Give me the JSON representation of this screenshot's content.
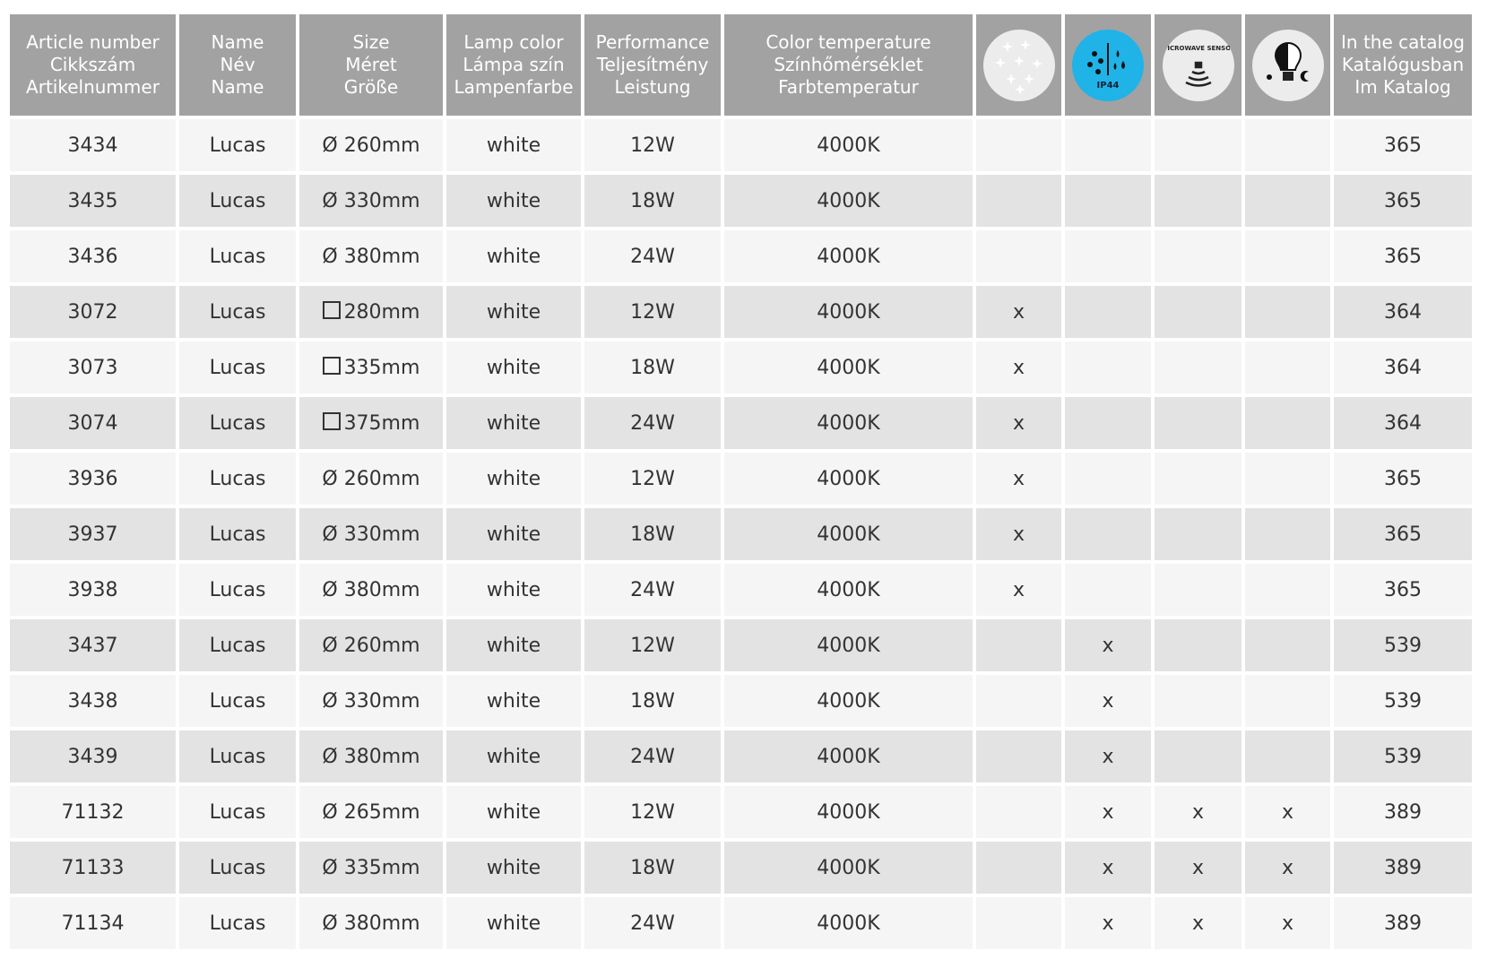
{
  "headers": [
    {
      "lines": [
        "Article number",
        "Cikkszám",
        "Artikelnummer"
      ]
    },
    {
      "lines": [
        "Name",
        "Név",
        "Name"
      ]
    },
    {
      "lines": [
        "Size",
        "Méret",
        "Größe"
      ]
    },
    {
      "lines": [
        "Lamp color",
        "Lámpa szín",
        "Lampenfarbe"
      ]
    },
    {
      "lines": [
        "Performance",
        "Teljesítmény",
        "Leistung"
      ]
    },
    {
      "lines": [
        "Color temperature",
        "Színhőmérséklet",
        "Farbtemperatur"
      ]
    },
    {
      "icon": "starry-sky-icon"
    },
    {
      "icon": "ip44-icon",
      "text": "IP44",
      "color": "#1fb3e8"
    },
    {
      "icon": "microwave-sensor-icon",
      "text": "MICROWAVE SENSOR"
    },
    {
      "icon": "day-night-bulb-icon"
    },
    {
      "lines": [
        "In the catalog",
        "Katalógusban",
        "Im Katalog"
      ]
    }
  ],
  "rows": [
    {
      "article": "3434",
      "name": "Lucas",
      "shape": "round",
      "size": "Ø 260mm",
      "color": "white",
      "power": "12W",
      "temp": "4000K",
      "star": "",
      "ip44": "",
      "sensor": "",
      "daynight": "",
      "catalog": "365"
    },
    {
      "article": "3435",
      "name": "Lucas",
      "shape": "round",
      "size": "Ø 330mm",
      "color": "white",
      "power": "18W",
      "temp": "4000K",
      "star": "",
      "ip44": "",
      "sensor": "",
      "daynight": "",
      "catalog": "365"
    },
    {
      "article": "3436",
      "name": "Lucas",
      "shape": "round",
      "size": "Ø 380mm",
      "color": "white",
      "power": "24W",
      "temp": "4000K",
      "star": "",
      "ip44": "",
      "sensor": "",
      "daynight": "",
      "catalog": "365"
    },
    {
      "article": "3072",
      "name": "Lucas",
      "shape": "square",
      "size": "280mm",
      "color": "white",
      "power": "12W",
      "temp": "4000K",
      "star": "x",
      "ip44": "",
      "sensor": "",
      "daynight": "",
      "catalog": "364"
    },
    {
      "article": "3073",
      "name": "Lucas",
      "shape": "square",
      "size": "335mm",
      "color": "white",
      "power": "18W",
      "temp": "4000K",
      "star": "x",
      "ip44": "",
      "sensor": "",
      "daynight": "",
      "catalog": "364"
    },
    {
      "article": "3074",
      "name": "Lucas",
      "shape": "square",
      "size": "375mm",
      "color": "white",
      "power": "24W",
      "temp": "4000K",
      "star": "x",
      "ip44": "",
      "sensor": "",
      "daynight": "",
      "catalog": "364"
    },
    {
      "article": "3936",
      "name": "Lucas",
      "shape": "round",
      "size": "Ø 260mm",
      "color": "white",
      "power": "12W",
      "temp": "4000K",
      "star": "x",
      "ip44": "",
      "sensor": "",
      "daynight": "",
      "catalog": "365"
    },
    {
      "article": "3937",
      "name": "Lucas",
      "shape": "round",
      "size": "Ø 330mm",
      "color": "white",
      "power": "18W",
      "temp": "4000K",
      "star": "x",
      "ip44": "",
      "sensor": "",
      "daynight": "",
      "catalog": "365"
    },
    {
      "article": "3938",
      "name": "Lucas",
      "shape": "round",
      "size": "Ø 380mm",
      "color": "white",
      "power": "24W",
      "temp": "4000K",
      "star": "x",
      "ip44": "",
      "sensor": "",
      "daynight": "",
      "catalog": "365"
    },
    {
      "article": "3437",
      "name": "Lucas",
      "shape": "round",
      "size": "Ø 260mm",
      "color": "white",
      "power": "12W",
      "temp": "4000K",
      "star": "",
      "ip44": "x",
      "sensor": "",
      "daynight": "",
      "catalog": "539"
    },
    {
      "article": "3438",
      "name": "Lucas",
      "shape": "round",
      "size": "Ø 330mm",
      "color": "white",
      "power": "18W",
      "temp": "4000K",
      "star": "",
      "ip44": "x",
      "sensor": "",
      "daynight": "",
      "catalog": "539"
    },
    {
      "article": "3439",
      "name": "Lucas",
      "shape": "round",
      "size": "Ø 380mm",
      "color": "white",
      "power": "24W",
      "temp": "4000K",
      "star": "",
      "ip44": "x",
      "sensor": "",
      "daynight": "",
      "catalog": "539"
    },
    {
      "article": "71132",
      "name": "Lucas",
      "shape": "round",
      "size": "Ø 265mm",
      "color": "white",
      "power": "12W",
      "temp": "4000K",
      "star": "",
      "ip44": "x",
      "sensor": "x",
      "daynight": "x",
      "catalog": "389"
    },
    {
      "article": "71133",
      "name": "Lucas",
      "shape": "round",
      "size": "Ø 335mm",
      "color": "white",
      "power": "18W",
      "temp": "4000K",
      "star": "",
      "ip44": "x",
      "sensor": "x",
      "daynight": "x",
      "catalog": "389"
    },
    {
      "article": "71134",
      "name": "Lucas",
      "shape": "round",
      "size": "Ø 380mm",
      "color": "white",
      "power": "24W",
      "temp": "4000K",
      "star": "",
      "ip44": "x",
      "sensor": "x",
      "daynight": "x",
      "catalog": "389"
    }
  ]
}
